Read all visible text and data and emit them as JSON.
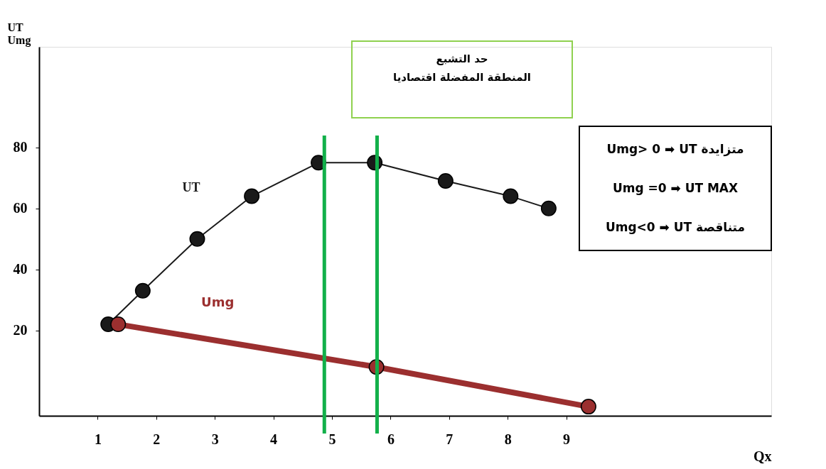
{
  "chart_data": {
    "type": "line",
    "xlabel": "Qx",
    "ylabel": "UT\nUmg",
    "xlim": [
      0,
      12.5
    ],
    "xticks": [
      1,
      2,
      3,
      4,
      5,
      6,
      7,
      8,
      9
    ],
    "ylim": [
      -8,
      113
    ],
    "yticks": [
      20,
      40,
      60,
      80
    ],
    "series": [
      {
        "name": "UT",
        "color": "#1a1a1a",
        "x": [
          1.18,
          1.77,
          2.7,
          3.63,
          4.77,
          5.73,
          6.94,
          8.05,
          8.7
        ],
        "values": [
          22,
          33,
          50,
          64,
          75,
          75,
          69,
          64,
          60
        ]
      },
      {
        "name": "Umg",
        "color": "#9b2f2f",
        "x": [
          1.35,
          5.76,
          9.38
        ],
        "values": [
          22,
          8,
          -5
        ]
      }
    ],
    "ref_lines": [
      {
        "axis": "x",
        "value": 4.87,
        "color": "#12b04a"
      },
      {
        "axis": "x",
        "value": 5.77,
        "color": "#12b04a"
      }
    ],
    "annotations": [
      "حد التشبع\nالمنطقة المفضلة اقتصاديا",
      "Umg> 0 ➡ UT متزايدة",
      "Umg =0 ➡ UT  MAX",
      "Umg<0 ➡ UT متناقصة"
    ],
    "marker": "circle",
    "grid": false
  }
}
